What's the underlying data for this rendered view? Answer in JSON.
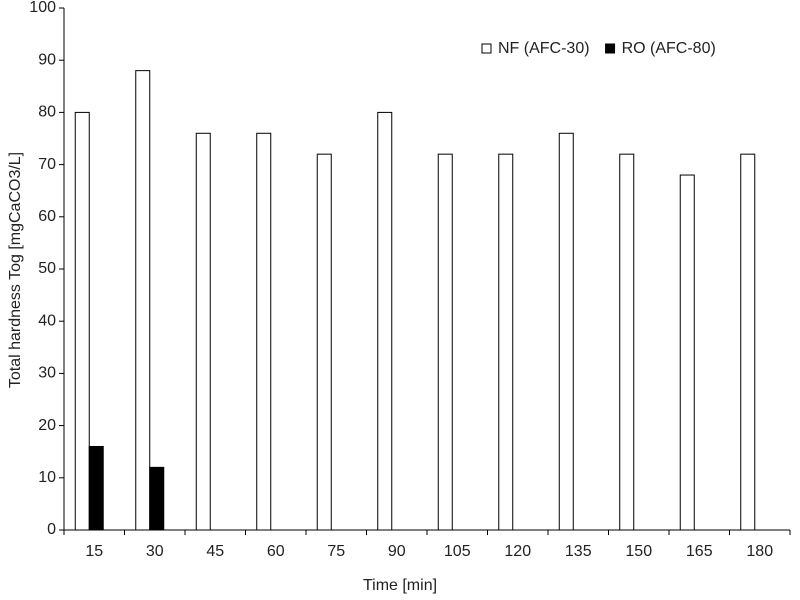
{
  "chart_data": {
    "type": "bar",
    "x_label": "Time [min]",
    "y_label": "Total hardness Tog [mgCaCO3/L]",
    "categories": [
      "15",
      "30",
      "45",
      "60",
      "75",
      "90",
      "105",
      "120",
      "135",
      "150",
      "165",
      "180"
    ],
    "series": [
      {
        "name": "NF (AFC-30)",
        "color": "#ffffff",
        "values": [
          80,
          88,
          76,
          76,
          72,
          80,
          72,
          72,
          76,
          72,
          68,
          72
        ]
      },
      {
        "name": "RO (AFC-80)",
        "color": "#000000",
        "values": [
          16,
          12,
          null,
          null,
          null,
          null,
          null,
          null,
          null,
          null,
          null,
          null
        ]
      }
    ],
    "ylim": [
      0,
      100
    ],
    "yticks": [
      0,
      10,
      20,
      30,
      40,
      50,
      60,
      70,
      80,
      90,
      100
    ],
    "grid": false,
    "legend": "top-right"
  }
}
